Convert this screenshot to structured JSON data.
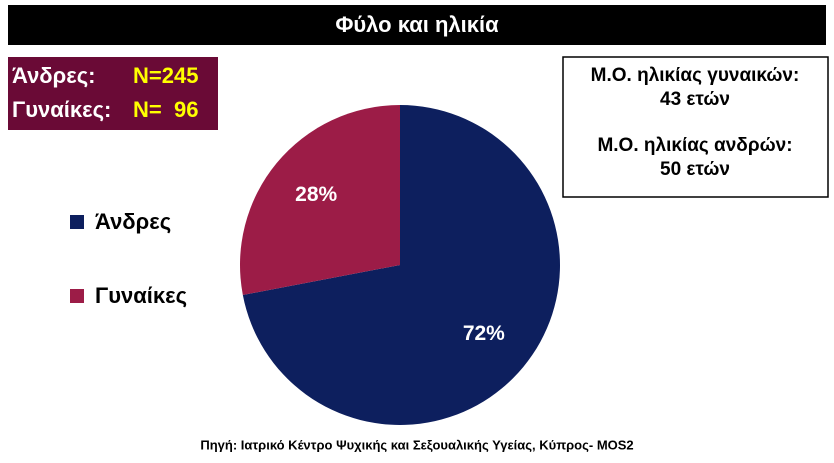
{
  "chart_data": {
    "type": "pie",
    "title": "Φύλο και ηλικία",
    "categories": [
      "Άνδρες",
      "Γυναίκες"
    ],
    "values": [
      72,
      28
    ],
    "value_labels": [
      "72%",
      "28%"
    ],
    "colors": [
      "#0d1f5e",
      "#9c1c47"
    ],
    "legend": "left",
    "count_labels": [
      "Άνδρες:",
      "Γυναίκες:"
    ],
    "count_values": [
      "N=245",
      "N=  96"
    ],
    "age_notes": [
      "Μ.Ο. ηλικίας γυναικών:",
      "43 ετών",
      "Μ.Ο. ηλικίας ανδρών:",
      "50 ετών"
    ],
    "source": "Πηγή: Ιατρικό Κέντρο Ψυχικής και Σεξουαλικής Υγείας, Κύπρος- MOS2"
  }
}
